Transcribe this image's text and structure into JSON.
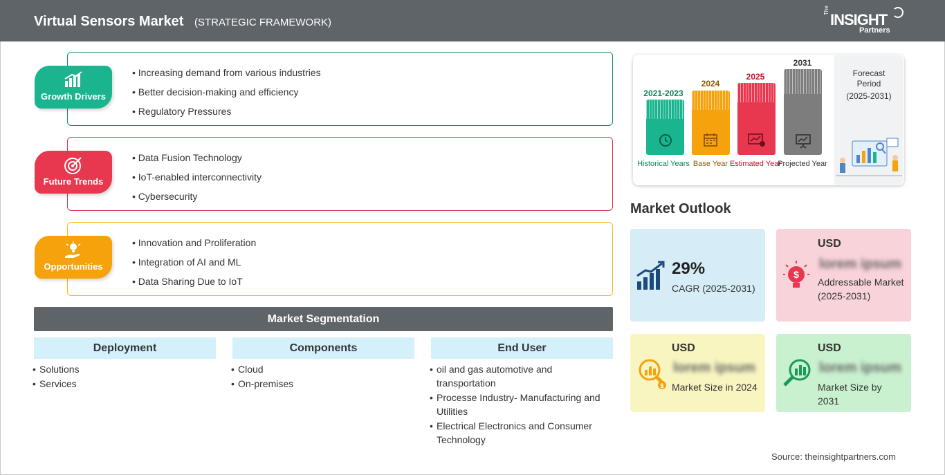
{
  "header": {
    "title": "Virtual Sensors Market",
    "subtitle": "(STRATEGIC FRAMEWORK)"
  },
  "logo": {
    "the": "The",
    "insight": "INSIGHT",
    "partners": "Partners"
  },
  "framework": [
    {
      "label": "Growth Drivers",
      "color": "#1ab58f",
      "border": "#1a8a68",
      "icon": "growth-chart-icon",
      "items": [
        "Increasing demand from various industries",
        "Better decision-making and efficiency",
        "Regulatory Pressures"
      ]
    },
    {
      "label": "Future Trends",
      "color": "#e8384f",
      "border": "#d43a4e",
      "icon": "target-icon",
      "items": [
        "Data Fusion Technology",
        "IoT-enabled interconnectivity",
        "Cybersecurity"
      ]
    },
    {
      "label": "Opportunities",
      "color": "#f5a20c",
      "border": "#f5b81f",
      "icon": "lightbulb-hand-icon",
      "items": [
        "Innovation and Proliferation",
        "Integration of AI and ML",
        "Data Sharing Due to IoT"
      ]
    }
  ],
  "segmentation": {
    "title": "Market Segmentation",
    "columns": [
      {
        "heading": "Deployment",
        "items": [
          "Solutions",
          "Services"
        ]
      },
      {
        "heading": "Components",
        "items": [
          "Cloud",
          "On-premises"
        ]
      },
      {
        "heading": "End User",
        "items": [
          "oil and gas automotive and transportation",
          "Processe Industry- Manufacturing and Utilities",
          "Electrical Electronics and Consumer Technology"
        ]
      }
    ]
  },
  "timeline": {
    "bars": [
      {
        "year": "2021-2023",
        "label": "Historical Years",
        "color": "#1ab58f",
        "label_color": "#13805f",
        "icon": "history-clock-icon"
      },
      {
        "year": "2024",
        "label": "Base Year",
        "color": "#f5a20c",
        "label_color": "#8a5a00",
        "icon": "calendar-icon"
      },
      {
        "year": "2025",
        "label": "Estimated Year",
        "color": "#e8384f",
        "label_color": "#b3192f",
        "icon": "estimate-gear-icon"
      },
      {
        "year": "2031",
        "label": "Projected Year",
        "color": "#7d7d7d",
        "label_color": "#333333",
        "icon": "presentation-icon"
      }
    ],
    "forecast": {
      "line1": "Forecast",
      "line2": "Period",
      "line3": "(2025-2031)"
    }
  },
  "outlook": {
    "title": "Market Outlook",
    "cagr": {
      "value": "29%",
      "label": "CAGR (2025-2031)",
      "color": "#d6ecf7",
      "icon": "growth-bars-icon"
    },
    "addressable": {
      "currency": "USD",
      "value": "lorem ipsum",
      "label": "Addressable Market (2025-2031)",
      "color": "#f8d3d9",
      "icon": "dollar-lightbulb-icon"
    },
    "size_2024": {
      "currency": "USD",
      "value": "lorem ipsum",
      "label": "Market Size in 2024",
      "color": "#f9f5c0",
      "icon": "magnifier-chart-icon"
    },
    "size_2031": {
      "currency": "USD",
      "value": "lorem ipsum",
      "label": "Market Size by 2031",
      "color": "#c9f1cf",
      "icon": "magnifier-bars-icon"
    }
  },
  "source": "Source: theinsightpartners.com"
}
